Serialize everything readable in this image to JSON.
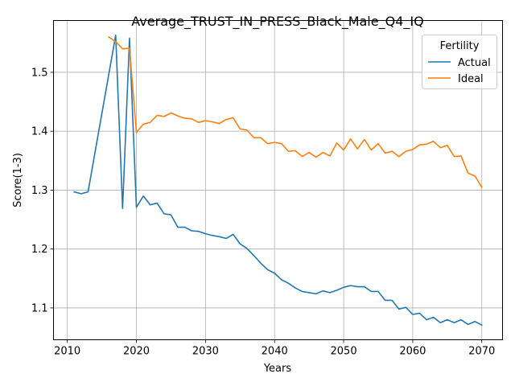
{
  "chart_data": {
    "type": "line",
    "title": "Average_TRUST_IN_PRESS_Black_Male_Q4_IQ",
    "xlabel": "Years",
    "ylabel": "Score(1-3)",
    "xlim": [
      2008,
      2073
    ],
    "ylim": [
      1.046,
      1.588
    ],
    "xticks": [
      2010,
      2020,
      2030,
      2040,
      2050,
      2060,
      2070
    ],
    "yticks": [
      1.1,
      1.2,
      1.3,
      1.4,
      1.5
    ],
    "ytick_labels": [
      "1.1",
      "1.2",
      "1.3",
      "1.4",
      "1.5"
    ],
    "grid": true,
    "legend": {
      "title": "Fertility",
      "placement": "top-right"
    },
    "series": [
      {
        "name": "Actual",
        "color": "#1f77b4",
        "x": [
          2011,
          2012,
          2013,
          2017,
          2018,
          2019,
          2020,
          2021,
          2022,
          2023,
          2024,
          2025,
          2026,
          2027,
          2028,
          2029,
          2030,
          2031,
          2032,
          2033,
          2034,
          2035,
          2036,
          2037,
          2038,
          2039,
          2040,
          2041,
          2042,
          2043,
          2044,
          2045,
          2046,
          2047,
          2048,
          2049,
          2050,
          2051,
          2052,
          2053,
          2054,
          2055,
          2056,
          2057,
          2058,
          2059,
          2060,
          2061,
          2062,
          2063,
          2064,
          2065,
          2066,
          2067,
          2068,
          2069,
          2070
        ],
        "y": [
          1.297,
          1.294,
          1.297,
          1.563,
          1.269,
          1.558,
          1.271,
          1.29,
          1.275,
          1.278,
          1.26,
          1.258,
          1.237,
          1.237,
          1.231,
          1.23,
          1.226,
          1.223,
          1.221,
          1.218,
          1.225,
          1.209,
          1.201,
          1.189,
          1.176,
          1.165,
          1.159,
          1.148,
          1.142,
          1.134,
          1.128,
          1.126,
          1.124,
          1.129,
          1.126,
          1.13,
          1.135,
          1.138,
          1.136,
          1.136,
          1.128,
          1.128,
          1.113,
          1.113,
          1.098,
          1.101,
          1.089,
          1.091,
          1.08,
          1.084,
          1.075,
          1.08,
          1.075,
          1.08,
          1.072,
          1.077,
          1.071
        ]
      },
      {
        "name": "Ideal",
        "color": "#ff7f0e",
        "x": [
          2016,
          2017,
          2018,
          2019,
          2020,
          2021,
          2022,
          2023,
          2024,
          2025,
          2026,
          2027,
          2028,
          2029,
          2030,
          2031,
          2032,
          2033,
          2034,
          2035,
          2036,
          2037,
          2038,
          2039,
          2040,
          2041,
          2042,
          2043,
          2044,
          2045,
          2046,
          2047,
          2048,
          2049,
          2050,
          2051,
          2052,
          2053,
          2054,
          2055,
          2056,
          2057,
          2058,
          2059,
          2060,
          2061,
          2062,
          2063,
          2064,
          2065,
          2066,
          2067,
          2068,
          2069,
          2070
        ],
        "y": [
          1.56,
          1.552,
          1.54,
          1.541,
          1.398,
          1.412,
          1.415,
          1.427,
          1.425,
          1.431,
          1.426,
          1.422,
          1.421,
          1.415,
          1.418,
          1.416,
          1.413,
          1.42,
          1.423,
          1.404,
          1.402,
          1.389,
          1.389,
          1.379,
          1.381,
          1.379,
          1.366,
          1.367,
          1.357,
          1.364,
          1.356,
          1.364,
          1.358,
          1.38,
          1.368,
          1.387,
          1.37,
          1.386,
          1.368,
          1.379,
          1.363,
          1.366,
          1.357,
          1.366,
          1.369,
          1.377,
          1.378,
          1.383,
          1.372,
          1.376,
          1.357,
          1.358,
          1.329,
          1.324,
          1.305
        ]
      }
    ]
  }
}
